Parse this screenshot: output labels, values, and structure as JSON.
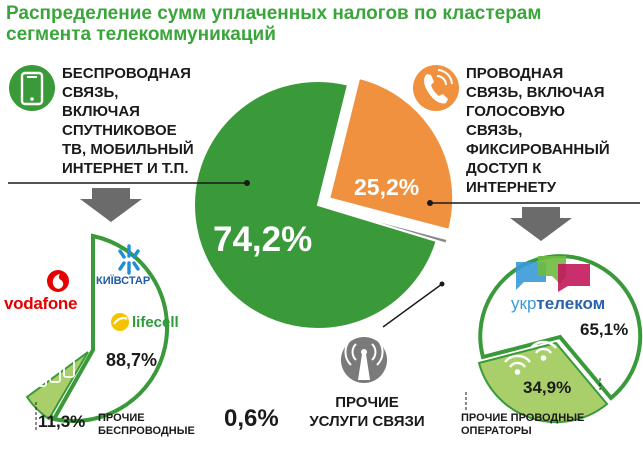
{
  "title_line1": "Распределение сумм уплаченных налогов по кластерам",
  "title_line2": "сегмента телекоммуникаций",
  "chart_data": {
    "type": "pie",
    "slices": [
      {
        "name": "Беспроводная связь, включая спутниковое ТВ, мобильный интернет и т.п.",
        "value": 74.2,
        "label": "74,2%",
        "color": "#3a9a3a"
      },
      {
        "name": "Проводная связь, включая голосовую связь, фиксированный доступ к интернету",
        "value": 25.2,
        "label": "25,2%",
        "color": "#f0913f"
      },
      {
        "name": "Прочие услуги связи",
        "value": 0.6,
        "label": "0,6%",
        "color": "#8a8a8a"
      }
    ]
  },
  "wireless": {
    "lines": [
      "БЕСПРОВОДНАЯ",
      "СВЯЗЬ,",
      "ВКЛЮЧАЯ",
      "СПУТНИКОВОЕ",
      "ТВ, МОБИЛЬНЫЙ",
      "ИНТЕРНЕТ И Т.П."
    ],
    "pct": "74,2%",
    "icon": "smartphone-icon",
    "subgroup": {
      "brands": [
        "vodafone",
        "КИЇВСТАР",
        "lifecell"
      ],
      "main_pct": "88,7%",
      "other_pct": "11,3%",
      "other_lines": [
        "ПРОЧИЕ",
        "БЕСПРОВОДНЫЕ"
      ]
    }
  },
  "wired": {
    "lines": [
      "ПРОВОДНАЯ",
      "СВЯЗЬ, ВКЛЮЧАЯ",
      "ГОЛОСОВУЮ",
      "СВЯЗЬ,",
      "ФИКСИРОВАННЫЙ",
      "ДОСТУП К",
      "ИНТЕРНЕТУ"
    ],
    "pct": "25,2%",
    "icon": "telephone-icon",
    "subgroup": {
      "brand": "УКРТЕЛЕКОМ",
      "brand_prefix": "укр",
      "brand_rest": "телеком",
      "main_pct": "65,1%",
      "other_pct": "34,9%",
      "other_lines": [
        "ПРОЧИЕ ПРОВОДНЫЕ",
        "ОПЕРАТОРЫ"
      ]
    }
  },
  "other": {
    "lines": [
      "ПРОЧИЕ",
      "УСЛУГИ СВЯЗИ"
    ],
    "pct": "0,6%",
    "icon": "antenna-icon"
  },
  "colors": {
    "green": "#3a9a3a",
    "light_green": "#a9cf6a",
    "orange": "#f0913f",
    "gray": "#8a8a8a",
    "title": "#3aa53a",
    "vodafone_red": "#e60000",
    "kyivstar_blue": "#1e8ed6",
    "lifecell_yellow": "#f5c400",
    "ukrtelecom_blue": "#2a62b0"
  }
}
